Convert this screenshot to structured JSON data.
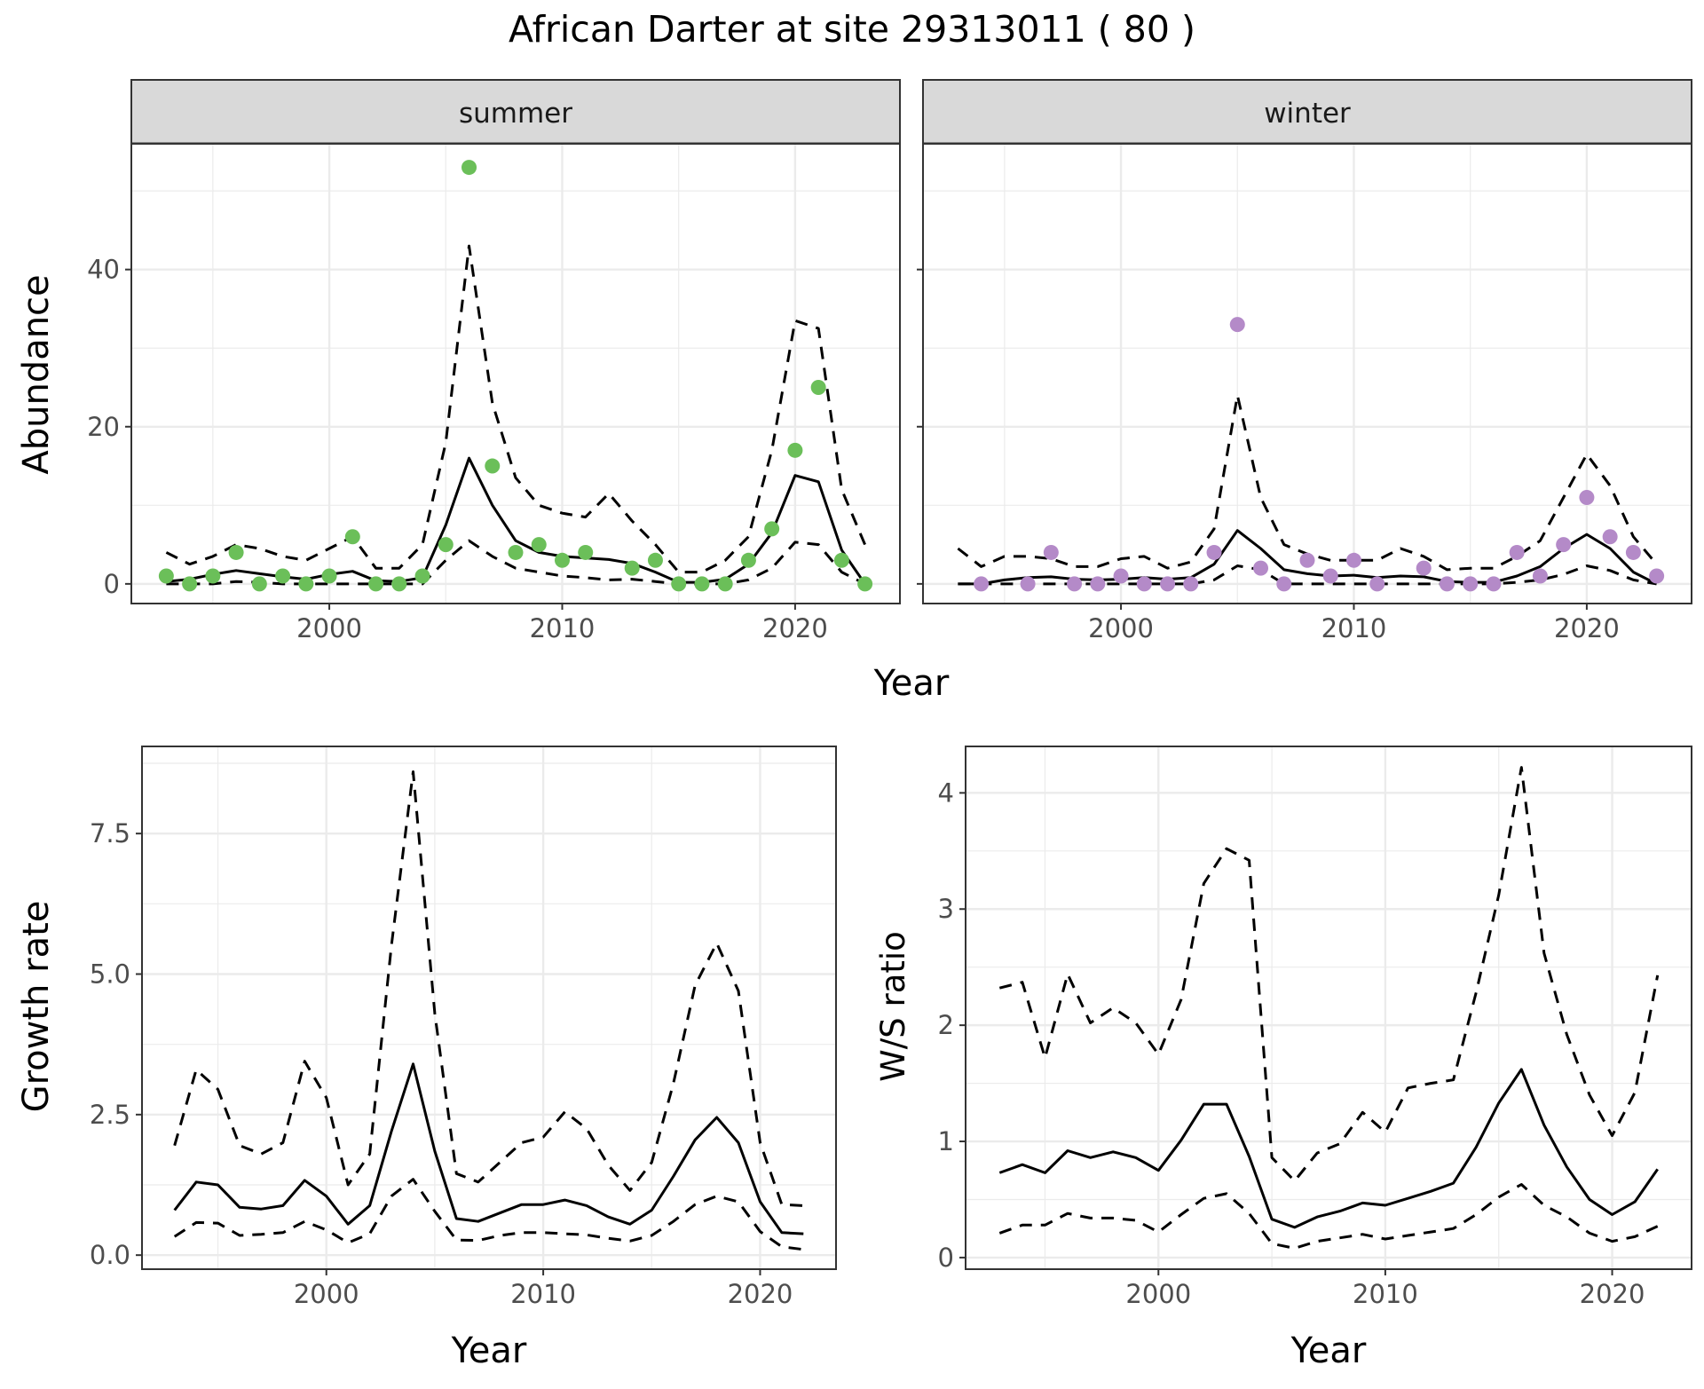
{
  "title": "African Darter at site 29313011 ( 80 )",
  "colors": {
    "summer_points": "#6bbf59",
    "winter_points": "#b48ac8",
    "lines": "#000000",
    "grid": "#ebebeb",
    "strip_fill": "#d9d9d9",
    "panel_border": "#333333"
  },
  "chart_data": [
    {
      "type": "line",
      "panel": "summer",
      "facet_label": "summer",
      "xlabel": "Year",
      "ylabel": "Abundance",
      "xlim": [
        1991.5,
        2024.5
      ],
      "ylim": [
        -2.5,
        56
      ],
      "xticks": [
        2000,
        2010,
        2020
      ],
      "yticks": [
        0,
        20,
        40
      ],
      "grid": true,
      "points": {
        "x": [
          1993,
          1994,
          1995,
          1996,
          1997,
          1998,
          1999,
          2000,
          2001,
          2002,
          2003,
          2004,
          2005,
          2006,
          2007,
          2008,
          2009,
          2010,
          2011,
          2013,
          2014,
          2015,
          2016,
          2017,
          2018,
          2019,
          2020,
          2021,
          2022,
          2023
        ],
        "y": [
          1,
          0,
          1,
          4,
          0,
          1,
          0,
          1,
          6,
          0,
          0,
          1,
          5,
          53,
          15,
          4,
          5,
          3,
          4,
          2,
          3,
          0,
          0,
          0,
          3,
          7,
          17,
          25,
          3,
          0
        ]
      },
      "series": [
        {
          "name": "",
          "style": "solid",
          "x": [
            1993,
            1994,
            1995,
            1996,
            1997,
            1998,
            1999,
            2000,
            2001,
            2002,
            2003,
            2004,
            2005,
            2006,
            2007,
            2008,
            2009,
            2010,
            2011,
            2012,
            2013,
            2014,
            2015,
            2016,
            2017,
            2018,
            2019,
            2020,
            2021,
            2022,
            2023
          ],
          "y": [
            0.3,
            0.6,
            1.2,
            1.7,
            1.3,
            0.9,
            0.6,
            1.2,
            1.6,
            0.4,
            0.3,
            0.8,
            7.5,
            16,
            10,
            5.5,
            4,
            3.5,
            3.3,
            3.1,
            2.6,
            1.5,
            0.2,
            0.2,
            0.6,
            2.5,
            6.5,
            13.8,
            13,
            4.3,
            0
          ]
        },
        {
          "name": "",
          "style": "dashed",
          "x": [
            1993,
            1994,
            1995,
            1996,
            1997,
            1998,
            1999,
            2000,
            2001,
            2002,
            2003,
            2004,
            2005,
            2006,
            2007,
            2008,
            2009,
            2010,
            2011,
            2012,
            2013,
            2014,
            2015,
            2016,
            2017,
            2018,
            2019,
            2020,
            2021,
            2022,
            2023
          ],
          "y": [
            4,
            2.5,
            3.5,
            5,
            4.5,
            3.5,
            3,
            4.5,
            6,
            2,
            2,
            5,
            18,
            43,
            23,
            13.5,
            10,
            9,
            8.5,
            11.5,
            8,
            5,
            1.5,
            1.5,
            3,
            6,
            17,
            33.5,
            32.5,
            12,
            5
          ]
        },
        {
          "name": "",
          "style": "dashed",
          "x": [
            1993,
            1994,
            1995,
            1996,
            1997,
            1998,
            1999,
            2000,
            2001,
            2002,
            2003,
            2004,
            2005,
            2006,
            2007,
            2008,
            2009,
            2010,
            2011,
            2012,
            2013,
            2014,
            2015,
            2016,
            2017,
            2018,
            2019,
            2020,
            2021,
            2022,
            2023
          ],
          "y": [
            0,
            0,
            0,
            0.3,
            0.2,
            0,
            0,
            0,
            0,
            0,
            0,
            0,
            3,
            5.5,
            3.5,
            2,
            1.5,
            1,
            0.8,
            0.5,
            0.6,
            0.3,
            0,
            0,
            0,
            0.5,
            2,
            5.3,
            5,
            1.5,
            0
          ]
        }
      ]
    },
    {
      "type": "line",
      "panel": "winter",
      "facet_label": "winter",
      "xlabel": "Year",
      "ylabel": "Abundance",
      "xlim": [
        1991.5,
        2024.5
      ],
      "ylim": [
        -2.5,
        56
      ],
      "xticks": [
        2000,
        2010,
        2020
      ],
      "yticks": [
        0,
        20,
        40
      ],
      "grid": true,
      "points": {
        "x": [
          1994,
          1996,
          1997,
          1998,
          1999,
          2000,
          2001,
          2002,
          2003,
          2004,
          2005,
          2006,
          2007,
          2008,
          2009,
          2010,
          2011,
          2013,
          2014,
          2015,
          2016,
          2017,
          2018,
          2019,
          2020,
          2021,
          2022,
          2023
        ],
        "y": [
          0,
          0,
          4,
          0,
          0,
          1,
          0,
          0,
          0,
          4,
          33,
          2,
          0,
          3,
          1,
          3,
          0,
          2,
          0,
          0,
          0,
          4,
          1,
          5,
          11,
          6,
          4,
          1
        ]
      },
      "series": [
        {
          "name": "",
          "style": "solid",
          "x": [
            1993,
            1994,
            1995,
            1996,
            1997,
            1998,
            1999,
            2000,
            2001,
            2002,
            2003,
            2004,
            2005,
            2006,
            2007,
            2008,
            2009,
            2010,
            2011,
            2012,
            2013,
            2014,
            2015,
            2016,
            2017,
            2018,
            2019,
            2020,
            2021,
            2022,
            2023
          ],
          "y": [
            0,
            0,
            0.5,
            0.8,
            0.9,
            0.6,
            0.5,
            0.6,
            0.8,
            0.6,
            0.8,
            2.5,
            6.8,
            4.5,
            1.8,
            1.3,
            1,
            1.1,
            0.8,
            1,
            0.9,
            0.3,
            0.2,
            0.2,
            1,
            2.2,
            4.5,
            6.3,
            4.5,
            1.5,
            0
          ]
        },
        {
          "name": "",
          "style": "dashed",
          "x": [
            1993,
            1994,
            1995,
            1996,
            1997,
            1998,
            1999,
            2000,
            2001,
            2002,
            2003,
            2004,
            2005,
            2006,
            2007,
            2008,
            2009,
            2010,
            2011,
            2012,
            2013,
            2014,
            2015,
            2016,
            2017,
            2018,
            2019,
            2020,
            2021,
            2022,
            2023
          ],
          "y": [
            4.5,
            2.2,
            3.5,
            3.5,
            3.2,
            2.2,
            2.2,
            3.2,
            3.5,
            2,
            2.8,
            7,
            24,
            11,
            5,
            3.8,
            3,
            3,
            3,
            4.5,
            3.5,
            1.8,
            2,
            2,
            3.5,
            5.5,
            11,
            16.5,
            12.5,
            6,
            2.5
          ]
        },
        {
          "name": "",
          "style": "dashed",
          "x": [
            1993,
            1994,
            1995,
            1996,
            1997,
            1998,
            1999,
            2000,
            2001,
            2002,
            2003,
            2004,
            2005,
            2006,
            2007,
            2008,
            2009,
            2010,
            2011,
            2012,
            2013,
            2014,
            2015,
            2016,
            2017,
            2018,
            2019,
            2020,
            2021,
            2022,
            2023
          ],
          "y": [
            0,
            0,
            0,
            0,
            0,
            0,
            0,
            0,
            0,
            0,
            0,
            0.5,
            2.3,
            1.8,
            0,
            0,
            0,
            0,
            0,
            0,
            0,
            0,
            0,
            0,
            0.2,
            0.5,
            1.2,
            2.3,
            1.7,
            0.5,
            0
          ]
        }
      ]
    },
    {
      "type": "line",
      "panel": "growth",
      "xlabel": "Year",
      "ylabel": "Growth rate",
      "xlim": [
        1991.5,
        2023.5
      ],
      "ylim": [
        -0.25,
        9.05
      ],
      "xticks": [
        2000,
        2010,
        2020
      ],
      "yticks": [
        0.0,
        2.5,
        5.0,
        7.5
      ],
      "ytick_labels": [
        "0.0",
        "2.5",
        "5.0",
        "7.5"
      ],
      "grid": true,
      "series": [
        {
          "name": "",
          "style": "solid",
          "x": [
            1993,
            1994,
            1995,
            1996,
            1997,
            1998,
            1999,
            2000,
            2001,
            2002,
            2003,
            2004,
            2005,
            2006,
            2007,
            2008,
            2009,
            2010,
            2011,
            2012,
            2013,
            2014,
            2015,
            2016,
            2017,
            2018,
            2019,
            2020,
            2021,
            2022
          ],
          "y": [
            0.8,
            1.3,
            1.25,
            0.85,
            0.82,
            0.88,
            1.33,
            1.05,
            0.55,
            0.88,
            2.2,
            3.4,
            1.85,
            0.65,
            0.6,
            0.75,
            0.9,
            0.9,
            0.98,
            0.88,
            0.68,
            0.55,
            0.8,
            1.4,
            2.05,
            2.45,
            2,
            0.95,
            0.4,
            0.38
          ]
        },
        {
          "name": "",
          "style": "dashed",
          "x": [
            1993,
            1994,
            1995,
            1996,
            1997,
            1998,
            1999,
            2000,
            2001,
            2002,
            2003,
            2004,
            2005,
            2006,
            2007,
            2008,
            2009,
            2010,
            2011,
            2012,
            2013,
            2014,
            2015,
            2016,
            2017,
            2018,
            2019,
            2020,
            2021,
            2022
          ],
          "y": [
            1.95,
            3.3,
            2.95,
            1.95,
            1.8,
            2,
            3.45,
            2.8,
            1.25,
            1.8,
            5.5,
            8.6,
            4.3,
            1.45,
            1.3,
            1.65,
            2,
            2.1,
            2.55,
            2.25,
            1.6,
            1.15,
            1.65,
            3.05,
            4.8,
            5.55,
            4.7,
            2,
            0.9,
            0.88
          ]
        },
        {
          "name": "",
          "style": "dashed",
          "x": [
            1993,
            1994,
            1995,
            1996,
            1997,
            1998,
            1999,
            2000,
            2001,
            2002,
            2003,
            2004,
            2005,
            2006,
            2007,
            2008,
            2009,
            2010,
            2011,
            2012,
            2013,
            2014,
            2015,
            2016,
            2017,
            2018,
            2019,
            2020,
            2021,
            2022
          ],
          "y": [
            0.33,
            0.58,
            0.57,
            0.35,
            0.37,
            0.4,
            0.6,
            0.45,
            0.22,
            0.38,
            1.05,
            1.35,
            0.78,
            0.27,
            0.26,
            0.35,
            0.4,
            0.4,
            0.38,
            0.36,
            0.3,
            0.25,
            0.35,
            0.6,
            0.9,
            1.05,
            0.95,
            0.42,
            0.15,
            0.1
          ]
        }
      ]
    },
    {
      "type": "line",
      "panel": "ratio",
      "xlabel": "Year",
      "ylabel": "W/S ratio",
      "xlim": [
        1991.5,
        2023.5
      ],
      "ylim": [
        -0.1,
        4.4
      ],
      "xticks": [
        2000,
        2010,
        2020
      ],
      "yticks": [
        0,
        1,
        2,
        3,
        4
      ],
      "grid": true,
      "series": [
        {
          "name": "",
          "style": "solid",
          "x": [
            1993,
            1994,
            1995,
            1996,
            1997,
            1998,
            1999,
            2000,
            2001,
            2002,
            2003,
            2004,
            2005,
            2006,
            2007,
            2008,
            2009,
            2010,
            2011,
            2012,
            2013,
            2014,
            2015,
            2016,
            2017,
            2018,
            2019,
            2020,
            2021,
            2022
          ],
          "y": [
            0.73,
            0.8,
            0.73,
            0.92,
            0.86,
            0.91,
            0.86,
            0.75,
            1.01,
            1.32,
            1.32,
            0.87,
            0.33,
            0.26,
            0.35,
            0.4,
            0.47,
            0.45,
            0.51,
            0.57,
            0.64,
            0.95,
            1.33,
            1.62,
            1.14,
            0.78,
            0.5,
            0.37,
            0.48,
            0.76
          ]
        },
        {
          "name": "",
          "style": "dashed",
          "x": [
            1993,
            1994,
            1995,
            1996,
            1997,
            1998,
            1999,
            2000,
            2001,
            2002,
            2003,
            2004,
            2005,
            2006,
            2007,
            2008,
            2009,
            2010,
            2011,
            2012,
            2013,
            2014,
            2015,
            2016,
            2017,
            2018,
            2019,
            2020,
            2021,
            2022
          ],
          "y": [
            2.32,
            2.37,
            1.72,
            2.44,
            2.02,
            2.15,
            2.02,
            1.75,
            2.22,
            3.22,
            3.52,
            3.42,
            0.86,
            0.66,
            0.9,
            0.98,
            1.25,
            1.08,
            1.46,
            1.5,
            1.53,
            2.28,
            3.12,
            4.22,
            2.62,
            1.92,
            1.4,
            1.05,
            1.42,
            2.43
          ]
        },
        {
          "name": "",
          "style": "dashed",
          "x": [
            1993,
            1994,
            1995,
            1996,
            1997,
            1998,
            1999,
            2000,
            2001,
            2002,
            2003,
            2004,
            2005,
            2006,
            2007,
            2008,
            2009,
            2010,
            2011,
            2012,
            2013,
            2014,
            2015,
            2016,
            2017,
            2018,
            2019,
            2020,
            2021,
            2022
          ],
          "y": [
            0.21,
            0.28,
            0.28,
            0.38,
            0.34,
            0.34,
            0.32,
            0.22,
            0.37,
            0.51,
            0.55,
            0.38,
            0.12,
            0.08,
            0.14,
            0.17,
            0.2,
            0.16,
            0.19,
            0.22,
            0.25,
            0.37,
            0.52,
            0.63,
            0.45,
            0.35,
            0.21,
            0.14,
            0.18,
            0.27
          ]
        }
      ]
    }
  ]
}
